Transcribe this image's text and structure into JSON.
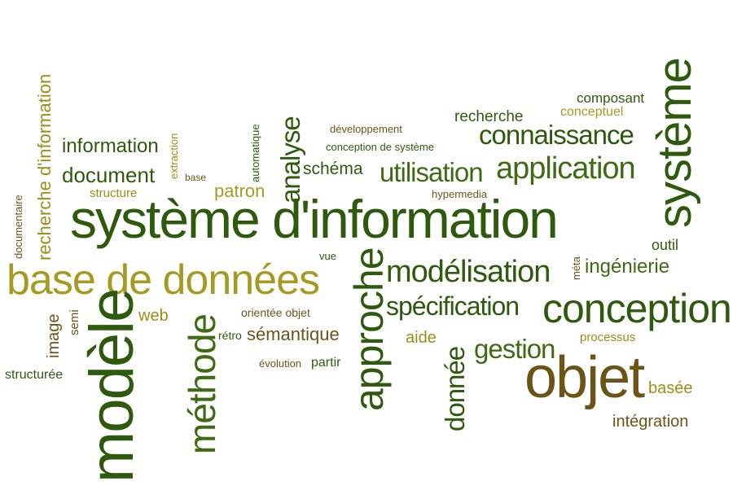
{
  "palette": {
    "dark_green": "#2d5a0c",
    "green": "#3e6b14",
    "olive": "#9c8d18",
    "brown": "#6b5416",
    "light_olive": "#a69a22"
  },
  "words": {
    "systeme_information": "système d'information",
    "modele": "modèle",
    "objet": "objet",
    "base_de_donnees": "base de données",
    "conception": "conception",
    "systeme": "système",
    "approche": "approche",
    "methode": "méthode",
    "modelisation": "modélisation",
    "application": "application",
    "utilisation": "utilisation",
    "connaissance": "connaissance",
    "specification": "spécification",
    "recherche_information": "recherche d'information",
    "analyse": "analyse",
    "donnee": "donnée",
    "gestion": "gestion",
    "document": "document",
    "information": "information",
    "ingenierie": "ingénierie",
    "patron": "patron",
    "semantique": "sémantique",
    "schema": "schéma",
    "recherche": "recherche",
    "composant": "composant",
    "conceptuel": "conceptuel",
    "developpement": "développement",
    "conception_de_systeme": "conception de système",
    "hypermedia": "hypermedia",
    "structure": "structure",
    "base": "base",
    "extraction": "extraction",
    "automatique": "automatique",
    "documentaire": "documentaire",
    "outil": "outil",
    "meta": "méta",
    "vue": "vue",
    "web": "web",
    "orientee_objet": "orientée objet",
    "retro": "rétro",
    "evolution": "évolution",
    "partir": "partir",
    "aide": "aide",
    "processus": "processus",
    "basee": "basée",
    "integration": "intégration",
    "image": "image",
    "semi": "semi",
    "structuree": "structurée"
  }
}
